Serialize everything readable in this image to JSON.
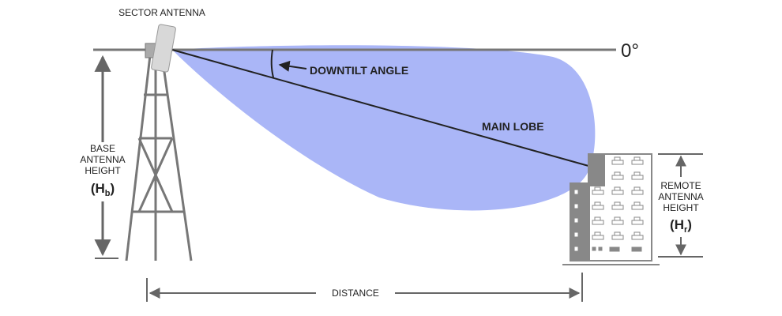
{
  "labels": {
    "sector_antenna": "SECTOR ANTENNA",
    "zero_degree": "0°",
    "downtilt_angle": "DOWNTILT ANGLE",
    "main_lobe": "MAIN LOBE",
    "base_height": [
      "BASE",
      "ANTENNA",
      "HEIGHT",
      "(H",
      "b",
      ")"
    ],
    "remote_height": [
      "REMOTE",
      "ANTENNA",
      "HEIGHT",
      "(H",
      "r",
      ")"
    ],
    "distance": "DISTANCE"
  },
  "colors": {
    "lobe": "#aab6f7",
    "structure": "#777777",
    "text": "#222222"
  }
}
